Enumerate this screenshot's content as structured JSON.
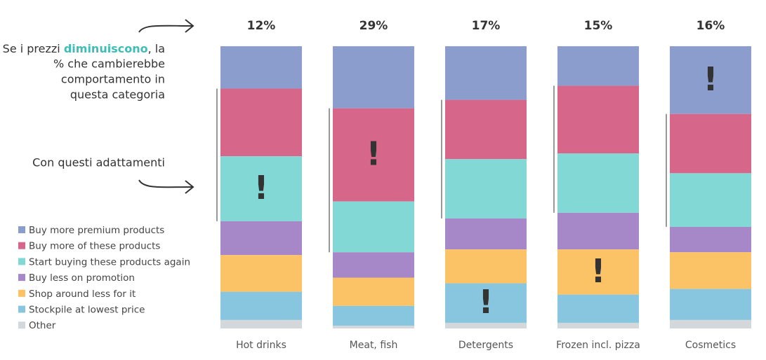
{
  "chart_data": {
    "type": "stacked_bar_100",
    "categories": [
      "Hot drinks",
      "Meat, fish",
      "Detergents",
      "Frozen incl. pizza",
      "Cosmetics"
    ],
    "series": [
      {
        "name": "Buy more premium products",
        "color": "#8a9dcc",
        "values": [
          15,
          22,
          19,
          14,
          24
        ]
      },
      {
        "name": "Buy more of these products",
        "color": "#d6678a",
        "values": [
          24,
          33,
          21,
          24,
          21
        ]
      },
      {
        "name": "Start buying these products again",
        "color": "#82d8d5",
        "values": [
          23,
          18,
          21,
          21,
          19
        ]
      },
      {
        "name": "Buy less on promotion",
        "color": "#a688c9",
        "values": [
          12,
          9,
          11,
          13,
          9
        ]
      },
      {
        "name": "Shop around less for it",
        "color": "#fcc266",
        "values": [
          13,
          10,
          12,
          16,
          13
        ]
      },
      {
        "name": "Stockpile at lowest price",
        "color": "#88c6e0",
        "values": [
          10,
          7,
          14,
          10,
          11
        ]
      },
      {
        "name": "Other",
        "color": "#d5d8db",
        "values": [
          3,
          1,
          2,
          2,
          3
        ]
      }
    ],
    "ylim": [
      0,
      100
    ],
    "totals": [
      12,
      29,
      17,
      15,
      16
    ],
    "total_labels": [
      "12%",
      "29%",
      "17%",
      "15%",
      "16%"
    ],
    "highlight_mark": "!",
    "highlight_series": [
      2,
      1,
      5,
      4,
      0
    ],
    "note_start": "Se i prezzi ",
    "note_emphasis": "diminuiscono",
    "note_end": ", la",
    "note_lines": [
      "% che cambierebbe",
      "comportamento in",
      "questa categoria"
    ],
    "note2": "Con questi adattamenti"
  }
}
